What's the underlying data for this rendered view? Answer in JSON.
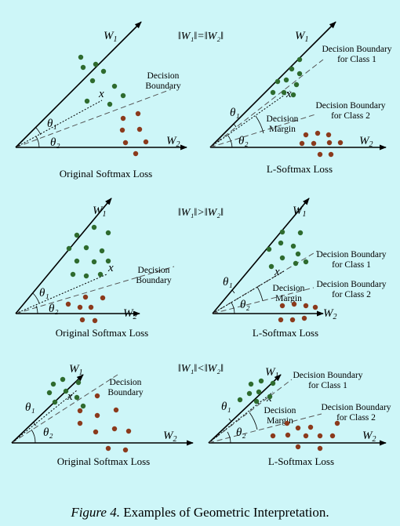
{
  "conditions": {
    "row1": "‖W₁‖=‖W₂‖",
    "row2": "‖W₁‖>‖W₂‖",
    "row3": "‖W₁‖<‖W₂‖"
  },
  "vectors": {
    "w1": "W",
    "w1_sub": "1",
    "w2": "W",
    "w2_sub": "2"
  },
  "angles": {
    "theta1": "θ₁",
    "theta2": "θ₂"
  },
  "point_label": "x",
  "decision_boundary": [
    "Decision",
    "Boundary"
  ],
  "boundary_class1": [
    "Decision Boundary",
    "for Class 1"
  ],
  "boundary_class2": [
    "Decision Boundary",
    "for Class 2"
  ],
  "decision_margin": [
    "Decision",
    "Margin"
  ],
  "captions": {
    "original": "Original Softmax Loss",
    "lsoftmax": "L-Softmax Loss"
  },
  "figure_caption": {
    "label": "Figure 4.",
    "text": "Examples of Geometric Interpretation."
  },
  "colors": {
    "background": "#cdf6f8",
    "class1": "#2e6b2e",
    "class2": "#8b3a1c"
  }
}
